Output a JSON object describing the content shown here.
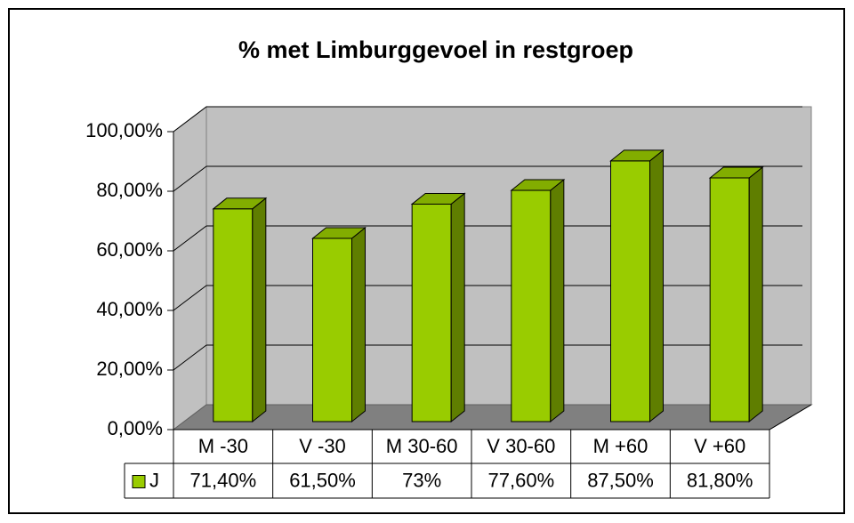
{
  "chart_data": {
    "type": "bar",
    "title": "% met Limburggevoel in restgroep",
    "categories": [
      "M -30",
      "V -30",
      "M 30-60",
      "V 30-60",
      "M +60",
      "V +60"
    ],
    "series": [
      {
        "name": "J",
        "color": "#99cc00",
        "values": [
          71.4,
          61.5,
          73,
          77.6,
          87.5,
          81.8
        ],
        "value_labels": [
          "71,40%",
          "61,50%",
          "73%",
          "77,60%",
          "87,50%",
          "81,80%"
        ]
      }
    ],
    "ylim": [
      0,
      100
    ],
    "yticks": [
      {
        "value": 0,
        "label": "0,00%"
      },
      {
        "value": 20,
        "label": "20,00%"
      },
      {
        "value": 40,
        "label": "40,00%"
      },
      {
        "value": 60,
        "label": "60,00%"
      },
      {
        "value": 80,
        "label": "80,00%"
      },
      {
        "value": 100,
        "label": "100,00%"
      }
    ],
    "grid": true
  }
}
